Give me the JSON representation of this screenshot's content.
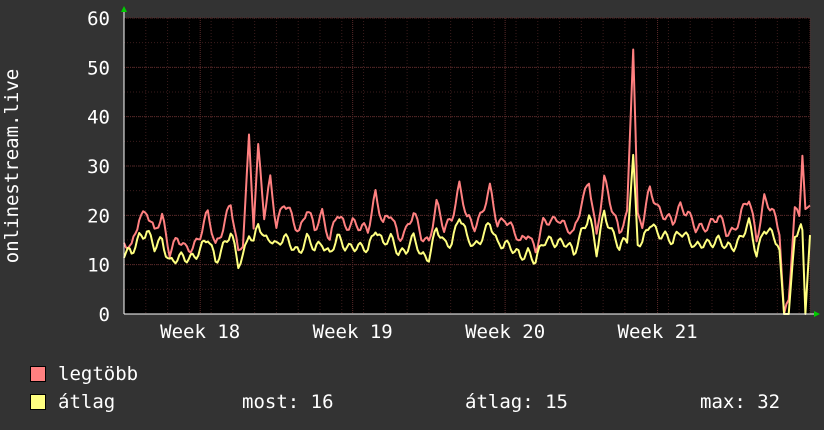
{
  "chart_data": {
    "type": "line",
    "ylabel": "onlinestream.live",
    "ylim": [
      0,
      60
    ],
    "yticks": [
      0,
      10,
      20,
      30,
      40,
      50,
      60
    ],
    "xticks": [
      "Week 18",
      "Week 19",
      "Week 20",
      "Week 21"
    ],
    "xrange_weeks": [
      17.5,
      22.0
    ],
    "grid": true,
    "legend_placement": "bottom-left",
    "colors": {
      "background": "#333333",
      "plot": "#000000",
      "major_grid": "#5a2a2a",
      "minor_grid": "#3a1c1c",
      "text": "#ffffff",
      "max_series": "#ff8080",
      "avg_series": "#ffff80"
    },
    "series": [
      {
        "name": "legtöbb",
        "color": "#ff8080",
        "keypoints": [
          [
            17.5,
            14
          ],
          [
            17.55,
            13
          ],
          [
            17.6,
            20
          ],
          [
            17.65,
            21
          ],
          [
            17.7,
            16
          ],
          [
            17.75,
            20
          ],
          [
            17.8,
            13
          ],
          [
            17.85,
            15
          ],
          [
            17.9,
            13
          ],
          [
            17.95,
            14
          ],
          [
            18.0,
            16
          ],
          [
            18.05,
            20
          ],
          [
            18.1,
            14
          ],
          [
            18.15,
            18
          ],
          [
            18.2,
            22
          ],
          [
            18.25,
            12
          ],
          [
            18.28,
            15
          ],
          [
            18.32,
            36
          ],
          [
            18.35,
            18
          ],
          [
            18.38,
            33
          ],
          [
            18.42,
            20
          ],
          [
            18.46,
            28
          ],
          [
            18.5,
            18
          ],
          [
            18.55,
            22
          ],
          [
            18.6,
            20
          ],
          [
            18.65,
            17
          ],
          [
            18.7,
            21
          ],
          [
            18.75,
            17
          ],
          [
            18.8,
            21
          ],
          [
            18.85,
            15
          ],
          [
            18.9,
            20
          ],
          [
            18.95,
            18
          ],
          [
            19.0,
            19
          ],
          [
            19.05,
            17
          ],
          [
            19.1,
            17
          ],
          [
            19.15,
            25
          ],
          [
            19.2,
            18
          ],
          [
            19.25,
            20
          ],
          [
            19.3,
            16
          ],
          [
            19.35,
            17
          ],
          [
            19.4,
            20
          ],
          [
            19.45,
            16
          ],
          [
            19.5,
            15
          ],
          [
            19.55,
            22
          ],
          [
            19.6,
            17
          ],
          [
            19.65,
            20
          ],
          [
            19.7,
            26
          ],
          [
            19.75,
            19
          ],
          [
            19.8,
            18
          ],
          [
            19.85,
            21
          ],
          [
            19.9,
            25
          ],
          [
            19.95,
            18
          ],
          [
            20.0,
            20
          ],
          [
            20.05,
            17
          ],
          [
            20.1,
            14
          ],
          [
            20.15,
            17
          ],
          [
            20.2,
            13
          ],
          [
            20.25,
            18
          ],
          [
            20.3,
            19
          ],
          [
            20.35,
            20
          ],
          [
            20.4,
            17
          ],
          [
            20.45,
            16
          ],
          [
            20.5,
            23
          ],
          [
            20.55,
            27
          ],
          [
            20.6,
            15
          ],
          [
            20.65,
            28
          ],
          [
            20.7,
            22
          ],
          [
            20.75,
            16
          ],
          [
            20.8,
            20
          ],
          [
            20.84,
            55
          ],
          [
            20.87,
            20
          ],
          [
            20.9,
            18
          ],
          [
            20.95,
            25
          ],
          [
            21.0,
            22
          ],
          [
            21.05,
            20
          ],
          [
            21.1,
            18
          ],
          [
            21.15,
            22
          ],
          [
            21.2,
            21
          ],
          [
            21.25,
            17
          ],
          [
            21.3,
            17
          ],
          [
            21.35,
            19
          ],
          [
            21.4,
            20
          ],
          [
            21.45,
            16
          ],
          [
            21.5,
            17
          ],
          [
            21.55,
            21
          ],
          [
            21.6,
            23
          ],
          [
            21.65,
            15
          ],
          [
            21.7,
            24
          ],
          [
            21.75,
            21
          ],
          [
            21.8,
            16
          ],
          [
            21.83,
            0
          ],
          [
            21.86,
            4
          ],
          [
            21.9,
            21
          ],
          [
            21.93,
            20
          ],
          [
            21.95,
            32
          ],
          [
            21.97,
            20
          ],
          [
            22.0,
            22
          ]
        ]
      },
      {
        "name": "átlag",
        "color": "#ffff80",
        "keypoints": [
          [
            17.5,
            12
          ],
          [
            17.55,
            12
          ],
          [
            17.6,
            16
          ],
          [
            17.65,
            17
          ],
          [
            17.7,
            13
          ],
          [
            17.75,
            15
          ],
          [
            17.8,
            11
          ],
          [
            17.85,
            11
          ],
          [
            17.9,
            11
          ],
          [
            17.95,
            12
          ],
          [
            18.0,
            13
          ],
          [
            18.05,
            15
          ],
          [
            18.1,
            11
          ],
          [
            18.15,
            14
          ],
          [
            18.2,
            16
          ],
          [
            18.25,
            10
          ],
          [
            18.28,
            12
          ],
          [
            18.32,
            17
          ],
          [
            18.35,
            14
          ],
          [
            18.38,
            18
          ],
          [
            18.42,
            15
          ],
          [
            18.46,
            16
          ],
          [
            18.5,
            14
          ],
          [
            18.55,
            15
          ],
          [
            18.6,
            14
          ],
          [
            18.65,
            13
          ],
          [
            18.7,
            15
          ],
          [
            18.75,
            13
          ],
          [
            18.8,
            15
          ],
          [
            18.85,
            12
          ],
          [
            18.9,
            15
          ],
          [
            18.95,
            14
          ],
          [
            19.0,
            14
          ],
          [
            19.05,
            13
          ],
          [
            19.1,
            13
          ],
          [
            19.15,
            18
          ],
          [
            19.2,
            14
          ],
          [
            19.25,
            15
          ],
          [
            19.3,
            13
          ],
          [
            19.35,
            13
          ],
          [
            19.4,
            15
          ],
          [
            19.45,
            12
          ],
          [
            19.5,
            12
          ],
          [
            19.55,
            17
          ],
          [
            19.6,
            14
          ],
          [
            19.65,
            15
          ],
          [
            19.7,
            20
          ],
          [
            19.75,
            15
          ],
          [
            19.8,
            14
          ],
          [
            19.85,
            16
          ],
          [
            19.9,
            18
          ],
          [
            19.95,
            14
          ],
          [
            20.0,
            15
          ],
          [
            20.05,
            13
          ],
          [
            20.1,
            11
          ],
          [
            20.15,
            13
          ],
          [
            20.2,
            11
          ],
          [
            20.25,
            14
          ],
          [
            20.3,
            15
          ],
          [
            20.35,
            15
          ],
          [
            20.4,
            14
          ],
          [
            20.45,
            12
          ],
          [
            20.5,
            17
          ],
          [
            20.55,
            20
          ],
          [
            20.6,
            12
          ],
          [
            20.65,
            21
          ],
          [
            20.7,
            17
          ],
          [
            20.75,
            13
          ],
          [
            20.8,
            15
          ],
          [
            20.84,
            32
          ],
          [
            20.87,
            15
          ],
          [
            20.9,
            14
          ],
          [
            20.95,
            18
          ],
          [
            21.0,
            17
          ],
          [
            21.05,
            16
          ],
          [
            21.1,
            14
          ],
          [
            21.15,
            17
          ],
          [
            21.2,
            16
          ],
          [
            21.25,
            13
          ],
          [
            21.3,
            14
          ],
          [
            21.35,
            15
          ],
          [
            21.4,
            15
          ],
          [
            21.45,
            13
          ],
          [
            21.5,
            14
          ],
          [
            21.55,
            16
          ],
          [
            21.6,
            18
          ],
          [
            21.65,
            12
          ],
          [
            21.7,
            18
          ],
          [
            21.75,
            16
          ],
          [
            21.8,
            13
          ],
          [
            21.83,
            0
          ],
          [
            21.86,
            0
          ],
          [
            21.9,
            16
          ],
          [
            21.93,
            17
          ],
          [
            21.95,
            17
          ],
          [
            21.97,
            0
          ],
          [
            22.0,
            16
          ]
        ]
      }
    ]
  },
  "legend": {
    "max_label": "legtöbb",
    "avg_label": "átlag",
    "now_text": "most: 16",
    "avg_text": "átlag: 15",
    "max_text": "max: 32"
  }
}
